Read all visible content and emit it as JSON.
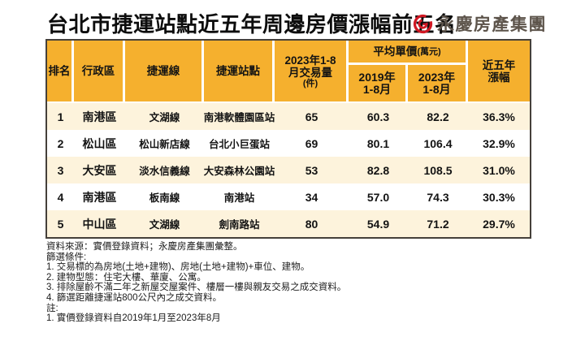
{
  "page": {
    "title": "台北市捷運站點近五年周邊房價漲幅前五名",
    "brand": {
      "name": "永慶房產集團",
      "logo_color": "#d01823",
      "text_color": "#5d544b"
    }
  },
  "table": {
    "colors": {
      "header_bg": "#f5b02e",
      "row_alt_bg": "#fdf3dc",
      "row_bg": "#ffffff",
      "border": "#45403a"
    },
    "headers": {
      "rank": "排名",
      "district": "行政區",
      "line": "捷運線",
      "station": "捷運站點",
      "volume_l1": "2023年1-8",
      "volume_l2": "月交易量",
      "volume_l3": "(件)",
      "avg_price_group": "平均單價",
      "avg_price_unit": "(萬元)",
      "y2019_l1": "2019年",
      "y2019_l2": "1-8月",
      "y2023_l1": "2023年",
      "y2023_l2": "1-8月",
      "growth_l1": "近五年",
      "growth_l2": "漲幅"
    },
    "rows": [
      {
        "rank": "1",
        "district": "南港區",
        "line": "文湖線",
        "station": "南港軟體園區站",
        "volume": "65",
        "price_2019": "60.3",
        "price_2023": "82.2",
        "growth": "36.3%"
      },
      {
        "rank": "2",
        "district": "松山區",
        "line": "松山新店線",
        "station": "台北小巨蛋站",
        "volume": "69",
        "price_2019": "80.1",
        "price_2023": "106.4",
        "growth": "32.9%"
      },
      {
        "rank": "3",
        "district": "大安區",
        "line": "淡水信義線",
        "station": "大安森林公園站",
        "volume": "53",
        "price_2019": "82.8",
        "price_2023": "108.5",
        "growth": "31.0%"
      },
      {
        "rank": "4",
        "district": "南港區",
        "line": "板南線",
        "station": "南港站",
        "volume": "34",
        "price_2019": "57.0",
        "price_2023": "74.3",
        "growth": "30.3%"
      },
      {
        "rank": "5",
        "district": "中山區",
        "line": "文湖線",
        "station": "劍南路站",
        "volume": "80",
        "price_2019": "54.9",
        "price_2023": "71.2",
        "growth": "29.7%"
      }
    ]
  },
  "footnotes": {
    "lines": [
      "資料來源：實價登錄資料；永慶房產集團彙整。",
      "篩選條件:",
      "1. 交易標的為房地(土地+建物)、房地(土地+建物)+車位、建物。",
      "2. 建物型態：住宅大樓、華廈、公寓。",
      "3. 排除屋齡不滿二年之新屋交屋案件、樓層一樓與親友交易之成交資料。",
      "4. 篩選距離捷運站800公尺內之成交資料。",
      "註:",
      "1. 實價登錄資料自2019年1月至2023年8月"
    ]
  },
  "chart_data": {
    "type": "table",
    "title": "台北市捷運站點近五年周邊房價漲幅前五名",
    "columns": [
      "排名",
      "行政區",
      "捷運線",
      "捷運站點",
      "2023年1-8月交易量(件)",
      "平均單價(萬元) 2019年1-8月",
      "平均單價(萬元) 2023年1-8月",
      "近五年漲幅"
    ],
    "rows": [
      [
        "1",
        "南港區",
        "文湖線",
        "南港軟體園區站",
        65,
        60.3,
        82.2,
        "36.3%"
      ],
      [
        "2",
        "松山區",
        "松山新店線",
        "台北小巨蛋站",
        69,
        80.1,
        106.4,
        "32.9%"
      ],
      [
        "3",
        "大安區",
        "淡水信義線",
        "大安森林公園站",
        53,
        82.8,
        108.5,
        "31.0%"
      ],
      [
        "4",
        "南港區",
        "板南線",
        "南港站",
        34,
        57.0,
        74.3,
        "30.3%"
      ],
      [
        "5",
        "中山區",
        "文湖線",
        "劍南路站",
        80,
        54.9,
        71.2,
        "29.7%"
      ]
    ]
  }
}
